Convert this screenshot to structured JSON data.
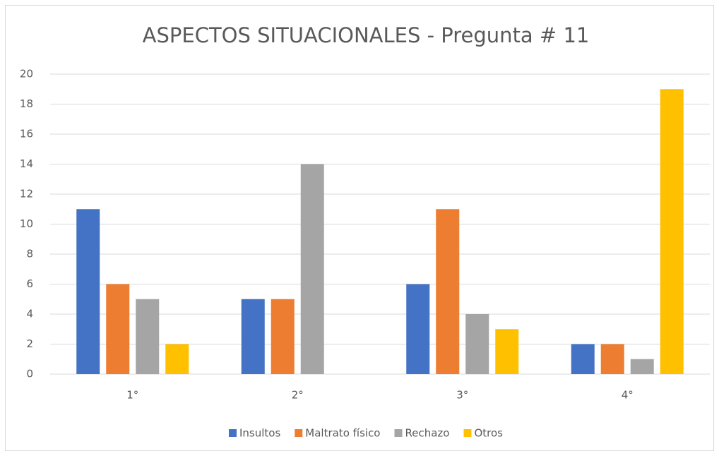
{
  "chart_data": {
    "type": "bar",
    "title": "ASPECTOS SITUACIONALES - Pregunta # 11",
    "categories": [
      "1°",
      "2°",
      "3°",
      "4°"
    ],
    "series": [
      {
        "name": "Insultos",
        "color": "#4472c4",
        "values": [
          11,
          5,
          6,
          2
        ]
      },
      {
        "name": "Maltrato físico",
        "color": "#ed7d31",
        "values": [
          6,
          5,
          11,
          2
        ]
      },
      {
        "name": "Rechazo",
        "color": "#a5a5a5",
        "values": [
          5,
          14,
          4,
          1
        ]
      },
      {
        "name": "Otros",
        "color": "#ffc000",
        "values": [
          2,
          0,
          3,
          19
        ]
      }
    ],
    "ylim": [
      0,
      20
    ],
    "yticks": [
      0,
      2,
      4,
      6,
      8,
      10,
      12,
      14,
      16,
      18,
      20
    ],
    "grid": true,
    "legend": "bottom"
  }
}
